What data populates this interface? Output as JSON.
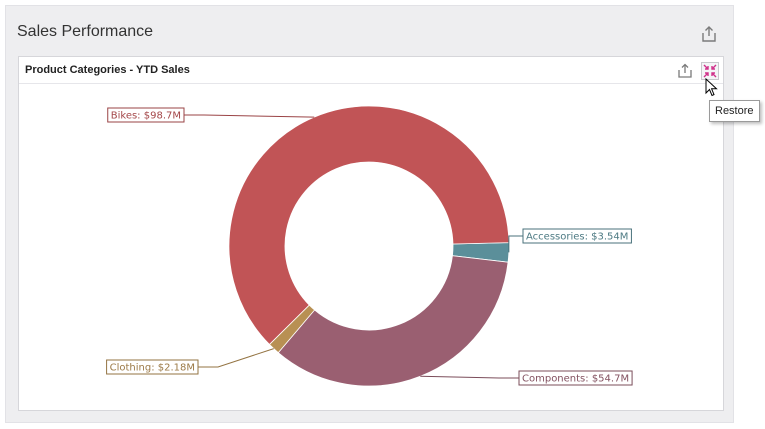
{
  "dashboard": {
    "title": "Sales Performance"
  },
  "item": {
    "title": "Product Categories - YTD Sales",
    "tooltip": "Restore"
  },
  "chart_data": {
    "type": "pie",
    "variant": "donut",
    "title": "Product Categories - YTD Sales",
    "units": "$M",
    "slices": [
      {
        "name": "Accessories",
        "value": 3.54,
        "label": "Accessories: $3.54M",
        "color": "#5b8f9a"
      },
      {
        "name": "Components",
        "value": 54.7,
        "label": "Components: $54.7M",
        "color": "#9a5f71"
      },
      {
        "name": "Clothing",
        "value": 2.18,
        "label": "Clothing: $2.18M",
        "color": "#b89053"
      },
      {
        "name": "Bikes",
        "value": 98.7,
        "label": "Bikes: $98.7M",
        "color": "#c15456"
      }
    ],
    "legend": "none"
  },
  "icons": {
    "dashboard_export": "export-icon",
    "item_export": "export-icon",
    "restore": "restore-icon",
    "cursor": "mouse-pointer-icon"
  }
}
